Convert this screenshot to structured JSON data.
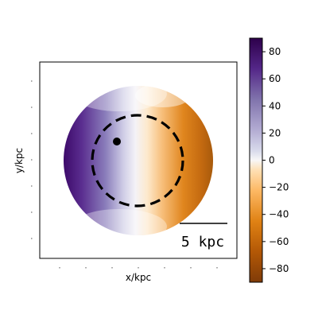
{
  "chart_data": {
    "type": "heatmap",
    "title": "",
    "xlabel": "x/kpc",
    "ylabel": "y/kpc",
    "x_tick_labels_visible": false,
    "y_tick_labels_visible": false,
    "x_tick_count": 7,
    "y_tick_count": 7,
    "map": {
      "shape": "circular disk",
      "quantity_range": [
        -90,
        90
      ],
      "pattern": "dipole: positive (purple) on the left, negative (orange) on the right, near 0 along the vertical center",
      "max_positive_region": "left edge",
      "max_negative_region": "right edge"
    },
    "overlay": {
      "circle_style": "dashed",
      "circle_color": "#000000",
      "marker": "filled circle",
      "marker_color": "#000000",
      "marker_position": "upper-left, inside the dashed circle"
    },
    "scale_bar": {
      "label": "5 kpc",
      "value": 5,
      "unit": "kpc"
    },
    "colorbar": {
      "colormap": "PuOr_r",
      "vmin": -90,
      "vmax": 90,
      "ticks": [
        80,
        60,
        40,
        20,
        0,
        -20,
        -40,
        -60,
        -80
      ],
      "tick_labels": [
        "80",
        "60",
        "40",
        "20",
        "0",
        "−20",
        "−40",
        "−60",
        "−80"
      ],
      "stops": [
        {
          "value": -90,
          "color": "#7f3b08"
        },
        {
          "value": -67.5,
          "color": "#b35806"
        },
        {
          "value": -45,
          "color": "#e08214"
        },
        {
          "value": -22.5,
          "color": "#fdb863"
        },
        {
          "value": -7,
          "color": "#fee0b6"
        },
        {
          "value": 0,
          "color": "#f7f7f7"
        },
        {
          "value": 7,
          "color": "#d8daeb"
        },
        {
          "value": 22.5,
          "color": "#b2abd2"
        },
        {
          "value": 45,
          "color": "#8073ac"
        },
        {
          "value": 67.5,
          "color": "#542788"
        },
        {
          "value": 90,
          "color": "#2d004b"
        }
      ]
    }
  }
}
